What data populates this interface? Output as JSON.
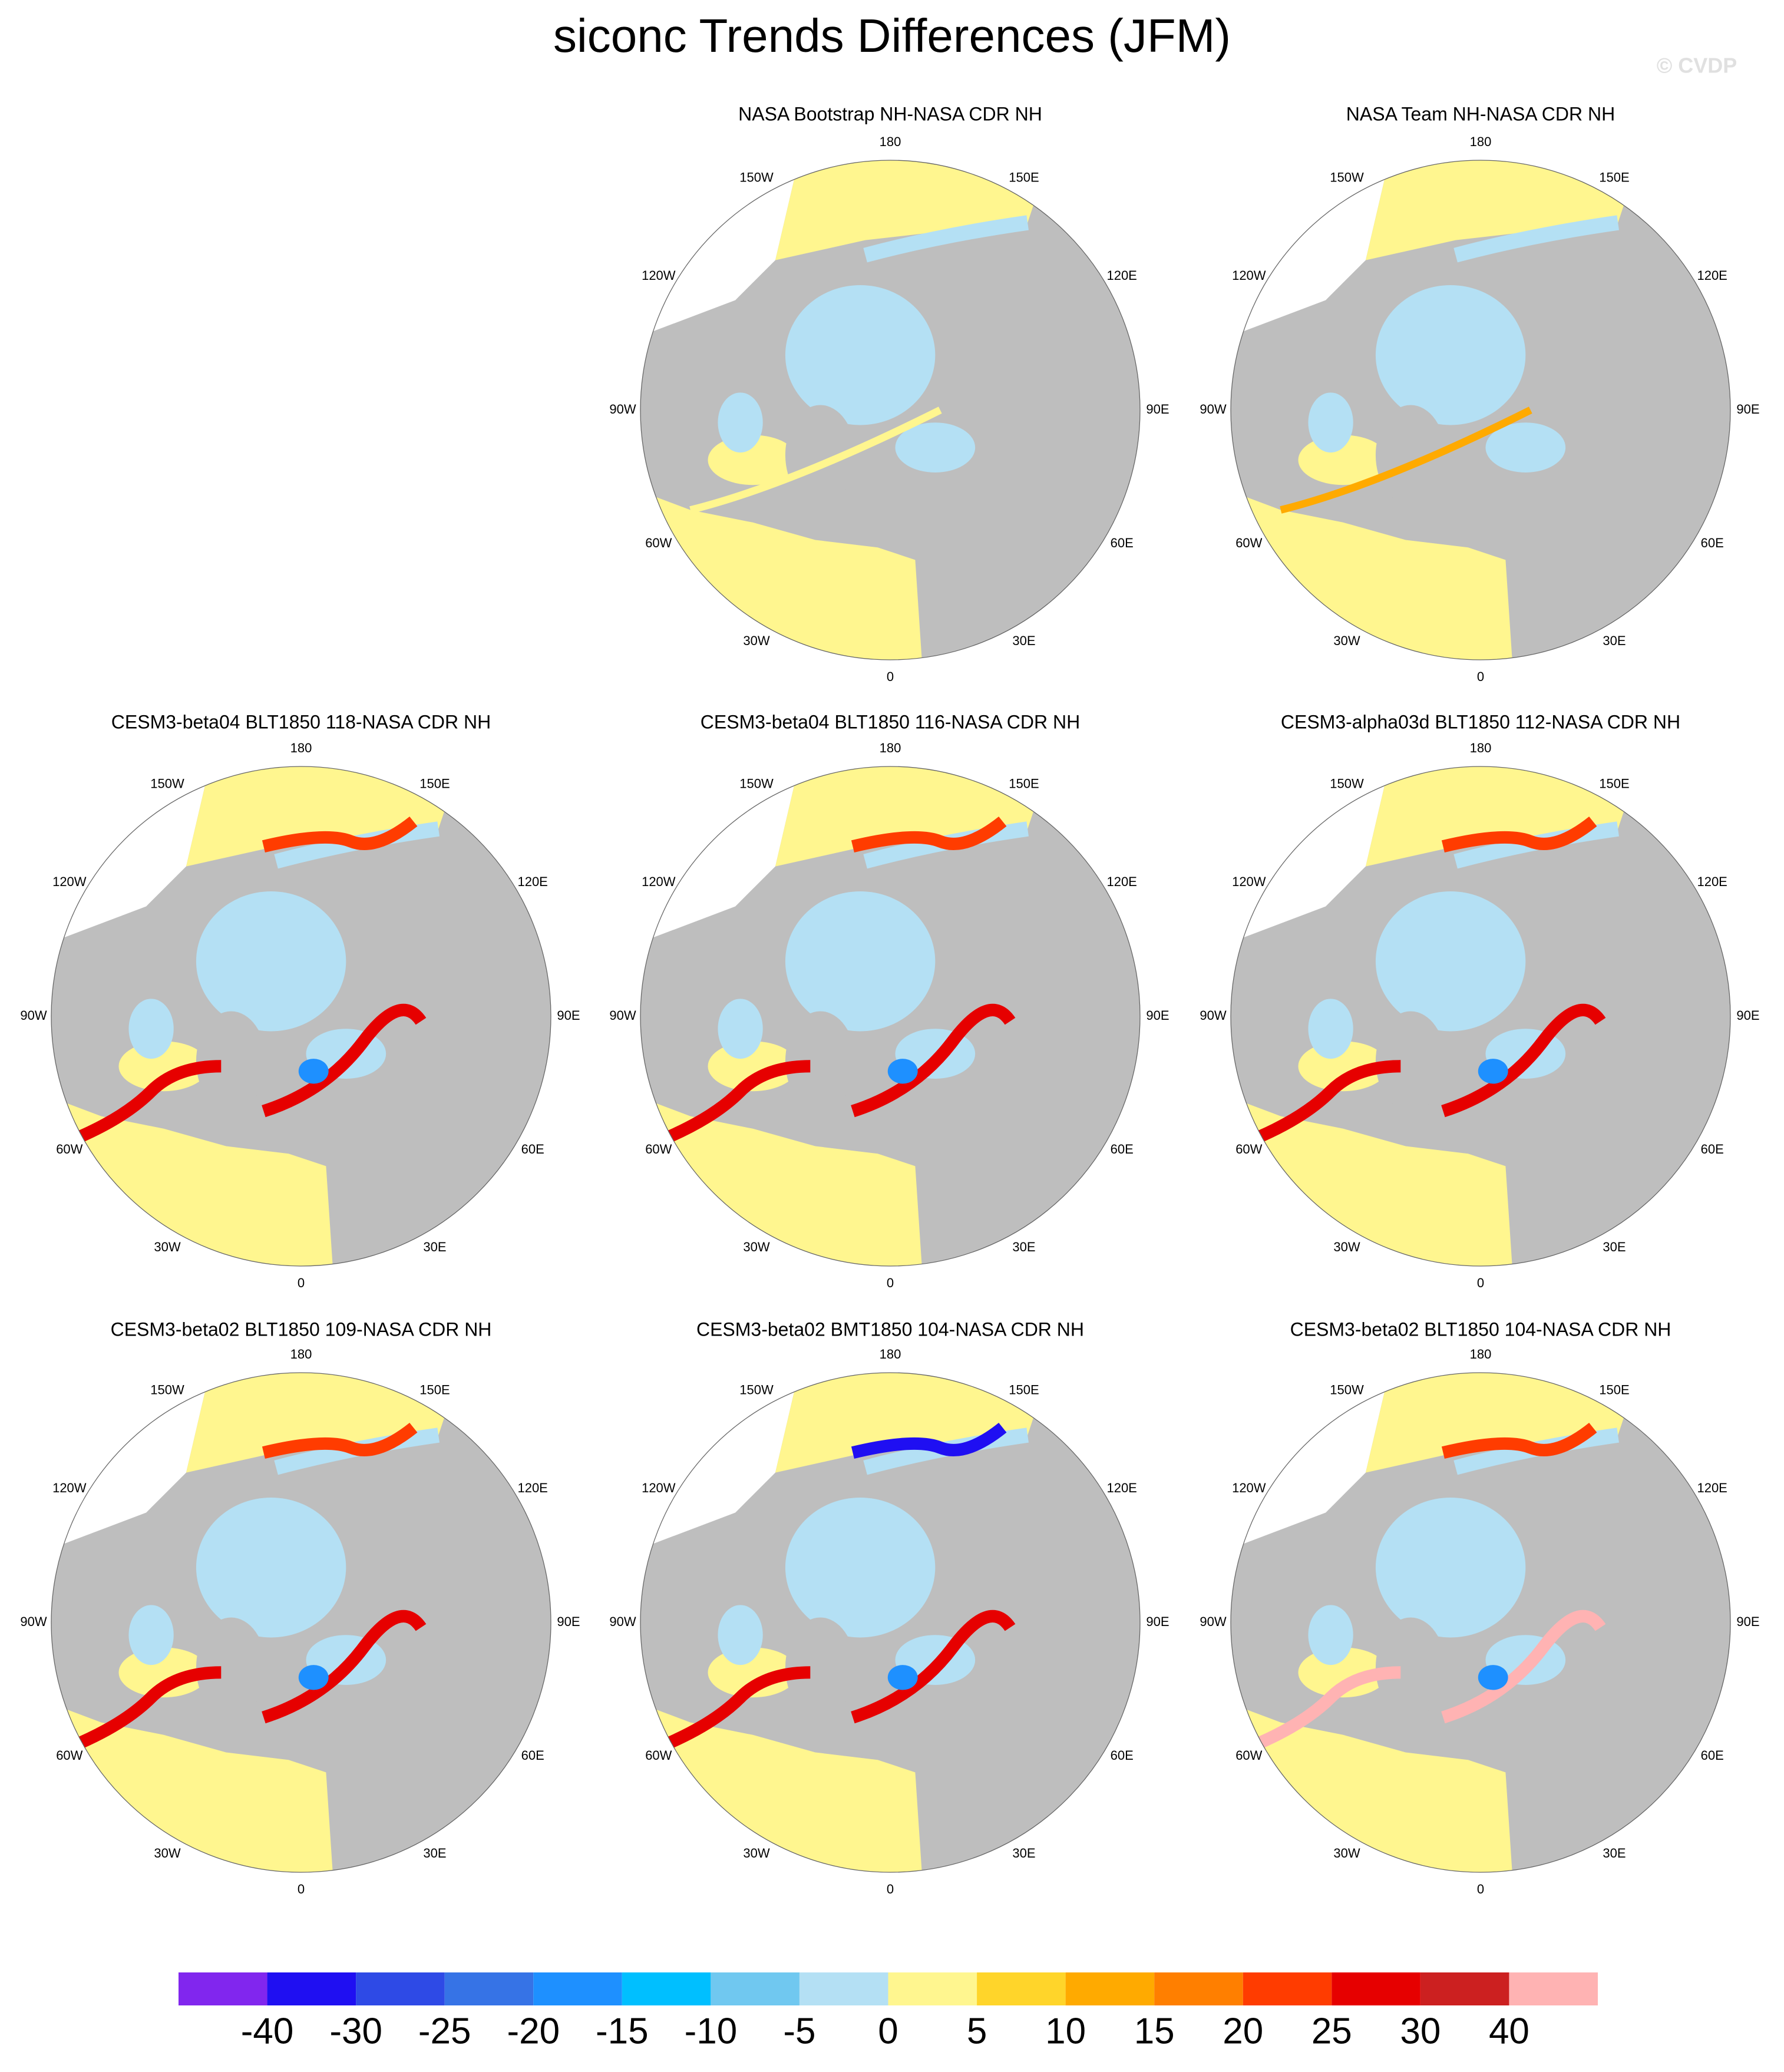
{
  "title": "siconc Trends Differences (JFM)",
  "watermark": "© CVDP",
  "lon_labels": [
    "180",
    "150E",
    "120E",
    "90E",
    "60E",
    "30E",
    "0",
    "30W",
    "60W",
    "90W",
    "120W",
    "150W"
  ],
  "panels": [
    {
      "title": "NASA Bootstrap NH-NASA CDR NH"
    },
    {
      "title": "NASA Team NH-NASA CDR NH"
    },
    {
      "title": "CESM3-beta04 BLT1850 118-NASA CDR NH"
    },
    {
      "title": "CESM3-beta04 BLT1850 116-NASA CDR NH"
    },
    {
      "title": "CESM3-alpha03d BLT1850 112-NASA CDR NH"
    },
    {
      "title": "CESM3-beta02 BLT1850 109-NASA CDR NH"
    },
    {
      "title": "CESM3-beta02 BMT1850 104-NASA CDR NH"
    },
    {
      "title": "CESM3-beta02 BLT1850 104-NASA CDR NH"
    }
  ],
  "colorbar": {
    "colors": [
      "#8126ee",
      "#1f0ff2",
      "#2e4ae6",
      "#3673e6",
      "#1e90ff",
      "#00bfff",
      "#70c8f0",
      "#b4e0f4",
      "#fff68f",
      "#ffd52a",
      "#ffaa00",
      "#ff7f00",
      "#ff3c00",
      "#e60000",
      "#cc2020",
      "#ffb3b3"
    ],
    "ticks": [
      -40,
      -30,
      -25,
      -20,
      -15,
      -10,
      -5,
      0,
      5,
      10,
      15,
      20,
      25,
      30,
      40
    ]
  }
}
